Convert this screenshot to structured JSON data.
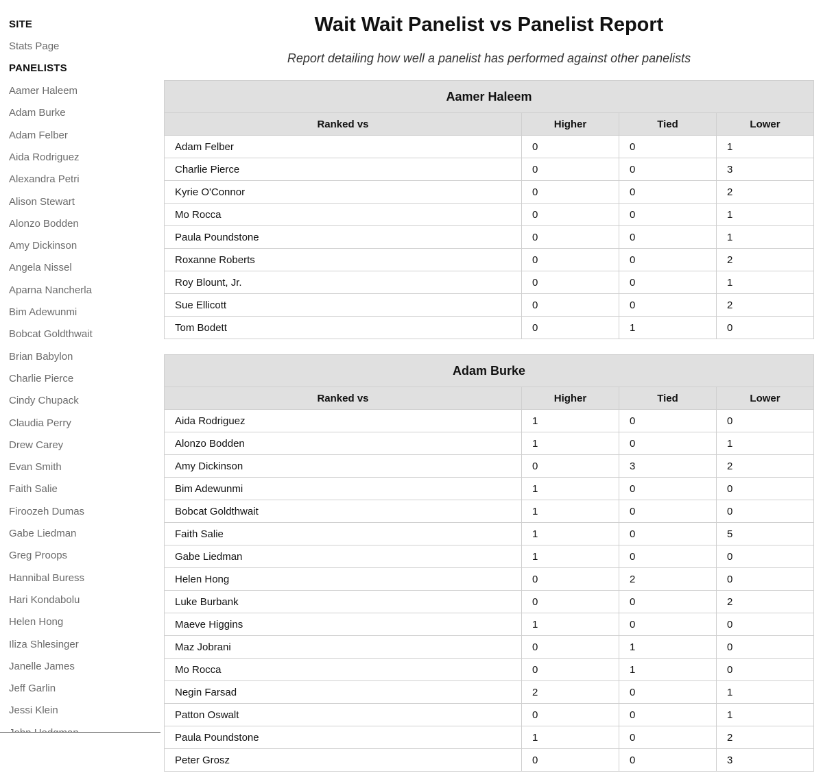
{
  "sidebar": {
    "site_heading": "SITE",
    "site_links": [
      "Stats Page"
    ],
    "panelists_heading": "PANELISTS",
    "panelist_links": [
      "Aamer Haleem",
      "Adam Burke",
      "Adam Felber",
      "Aida Rodriguez",
      "Alexandra Petri",
      "Alison Stewart",
      "Alonzo Bodden",
      "Amy Dickinson",
      "Angela Nissel",
      "Aparna Nancherla",
      "Bim Adewunmi",
      "Bobcat Goldthwait",
      "Brian Babylon",
      "Charlie Pierce",
      "Cindy Chupack",
      "Claudia Perry",
      "Drew Carey",
      "Evan Smith",
      "Faith Salie",
      "Firoozeh Dumas",
      "Gabe Liedman",
      "Greg Proops",
      "Hannibal Buress",
      "Hari Kondabolu",
      "Helen Hong",
      "Iliza Shlesinger",
      "Janelle James",
      "Jeff Garlin",
      "Jessi Klein",
      "John Hodgman"
    ]
  },
  "header": {
    "title": "Wait Wait Panelist vs Panelist Report",
    "subtitle": "Report detailing how well a panelist has performed against other panelists"
  },
  "columns": [
    "Ranked vs",
    "Higher",
    "Tied",
    "Lower"
  ],
  "reports": [
    {
      "panelist": "Aamer Haleem",
      "rows": [
        [
          "Adam Felber",
          "0",
          "0",
          "1"
        ],
        [
          "Charlie Pierce",
          "0",
          "0",
          "3"
        ],
        [
          "Kyrie O'Connor",
          "0",
          "0",
          "2"
        ],
        [
          "Mo Rocca",
          "0",
          "0",
          "1"
        ],
        [
          "Paula Poundstone",
          "0",
          "0",
          "1"
        ],
        [
          "Roxanne Roberts",
          "0",
          "0",
          "2"
        ],
        [
          "Roy Blount, Jr.",
          "0",
          "0",
          "1"
        ],
        [
          "Sue Ellicott",
          "0",
          "0",
          "2"
        ],
        [
          "Tom Bodett",
          "0",
          "1",
          "0"
        ]
      ]
    },
    {
      "panelist": "Adam Burke",
      "rows": [
        [
          "Aida Rodriguez",
          "1",
          "0",
          "0"
        ],
        [
          "Alonzo Bodden",
          "1",
          "0",
          "1"
        ],
        [
          "Amy Dickinson",
          "0",
          "3",
          "2"
        ],
        [
          "Bim Adewunmi",
          "1",
          "0",
          "0"
        ],
        [
          "Bobcat Goldthwait",
          "1",
          "0",
          "0"
        ],
        [
          "Faith Salie",
          "1",
          "0",
          "5"
        ],
        [
          "Gabe Liedman",
          "1",
          "0",
          "0"
        ],
        [
          "Helen Hong",
          "0",
          "2",
          "0"
        ],
        [
          "Luke Burbank",
          "0",
          "0",
          "2"
        ],
        [
          "Maeve Higgins",
          "1",
          "0",
          "0"
        ],
        [
          "Maz Jobrani",
          "0",
          "1",
          "0"
        ],
        [
          "Mo Rocca",
          "0",
          "1",
          "0"
        ],
        [
          "Negin Farsad",
          "2",
          "0",
          "1"
        ],
        [
          "Patton Oswalt",
          "0",
          "0",
          "1"
        ],
        [
          "Paula Poundstone",
          "1",
          "0",
          "2"
        ],
        [
          "Peter Grosz",
          "0",
          "0",
          "3"
        ]
      ]
    }
  ]
}
